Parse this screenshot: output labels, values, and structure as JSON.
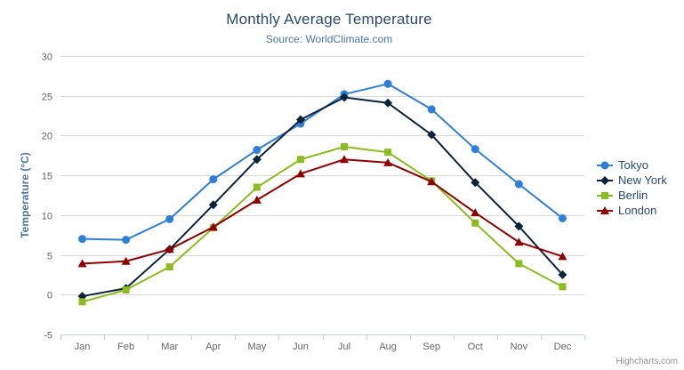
{
  "header": {
    "title": "Monthly Average Temperature",
    "subtitle": "Source: WorldClimate.com"
  },
  "context_menu": {
    "icon": "hamburger-icon"
  },
  "credit": {
    "label": "Highcharts.com"
  },
  "colors": {
    "title_text": "#274b6d",
    "subtitle_text": "#4d759e",
    "axis_label_text": "#666666",
    "axis_title_text": "#4d759e",
    "grid_line": "#d8d8d8",
    "x_axis_line": "#c0d0e0",
    "legend_text": "#274b6d",
    "tokyo": "#2f7ed8",
    "new_york": "#0d233a",
    "berlin": "#8bbc21",
    "london": "#910000"
  },
  "chart_data": {
    "type": "line",
    "title": "Monthly Average Temperature",
    "subtitle": "Source: WorldClimate.com",
    "xlabel": "",
    "ylabel": "Temperature (°C)",
    "ylim": [
      -5,
      30
    ],
    "y_tick_interval": 5,
    "grid": true,
    "legend_position": "right",
    "categories": [
      "Jan",
      "Feb",
      "Mar",
      "Apr",
      "May",
      "Jun",
      "Jul",
      "Aug",
      "Sep",
      "Oct",
      "Nov",
      "Dec"
    ],
    "series": [
      {
        "name": "Tokyo",
        "color": "#2f7ed8",
        "marker": "circle",
        "values": [
          7.0,
          6.9,
          9.5,
          14.5,
          18.2,
          21.5,
          25.2,
          26.5,
          23.3,
          18.3,
          13.9,
          9.6
        ]
      },
      {
        "name": "New York",
        "color": "#0d233a",
        "marker": "diamond",
        "values": [
          -0.2,
          0.8,
          5.7,
          11.3,
          17.0,
          22.0,
          24.8,
          24.1,
          20.1,
          14.1,
          8.6,
          2.5
        ]
      },
      {
        "name": "Berlin",
        "color": "#8bbc21",
        "marker": "square",
        "values": [
          -0.9,
          0.6,
          3.5,
          8.4,
          13.5,
          17.0,
          18.6,
          17.9,
          14.3,
          9.0,
          3.9,
          1.0
        ]
      },
      {
        "name": "London",
        "color": "#910000",
        "marker": "triangle",
        "values": [
          3.9,
          4.2,
          5.7,
          8.5,
          11.9,
          15.2,
          17.0,
          16.6,
          14.2,
          10.3,
          6.6,
          4.8
        ]
      }
    ]
  }
}
